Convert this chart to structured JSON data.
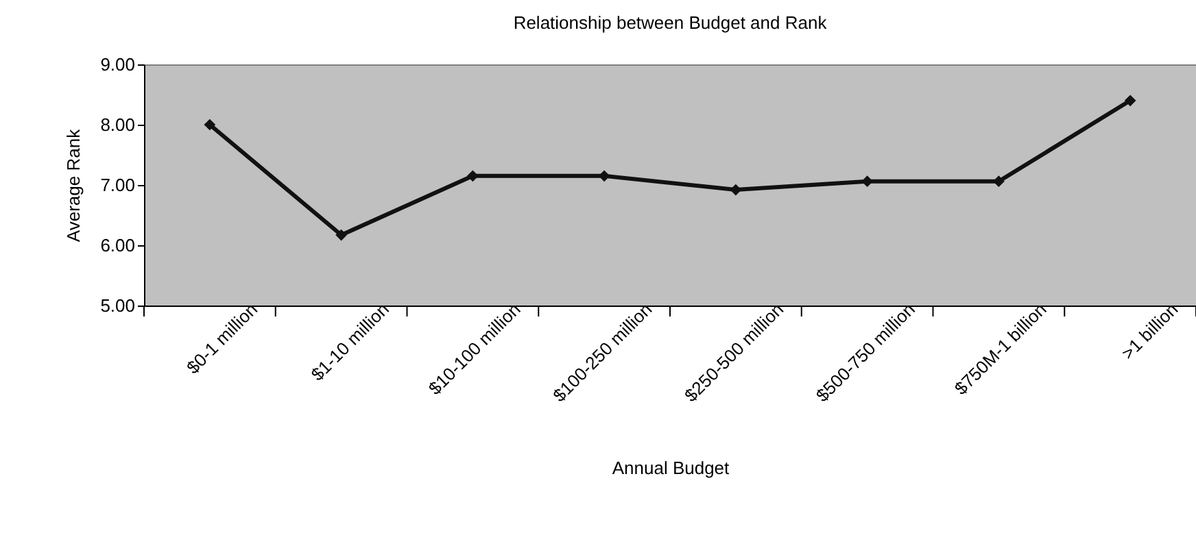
{
  "chart_data": {
    "type": "line",
    "title": "Relationship between Budget and Rank",
    "xlabel": "Annual Budget",
    "ylabel": "Average Rank",
    "categories": [
      "$0-1 million",
      "$1-10 million",
      "$10-100 million",
      "$100-250 million",
      "$250-500 million",
      "$500-750 million",
      "$750M-1 billion",
      ">1 billion"
    ],
    "series": [
      {
        "color": "#111111",
        "values": [
          8.0,
          6.17,
          7.15,
          7.15,
          6.92,
          7.06,
          7.06,
          8.4
        ]
      }
    ],
    "ylim": [
      5,
      9
    ],
    "yticks": [
      {
        "value": 5,
        "label": "5.00"
      },
      {
        "value": 6,
        "label": "6.00"
      },
      {
        "value": 7,
        "label": "7.00"
      },
      {
        "value": 8,
        "label": "8.00"
      },
      {
        "value": 9,
        "label": "9.00"
      }
    ],
    "grid": false,
    "legend": false,
    "marker": "diamond",
    "line_style": "solid"
  }
}
